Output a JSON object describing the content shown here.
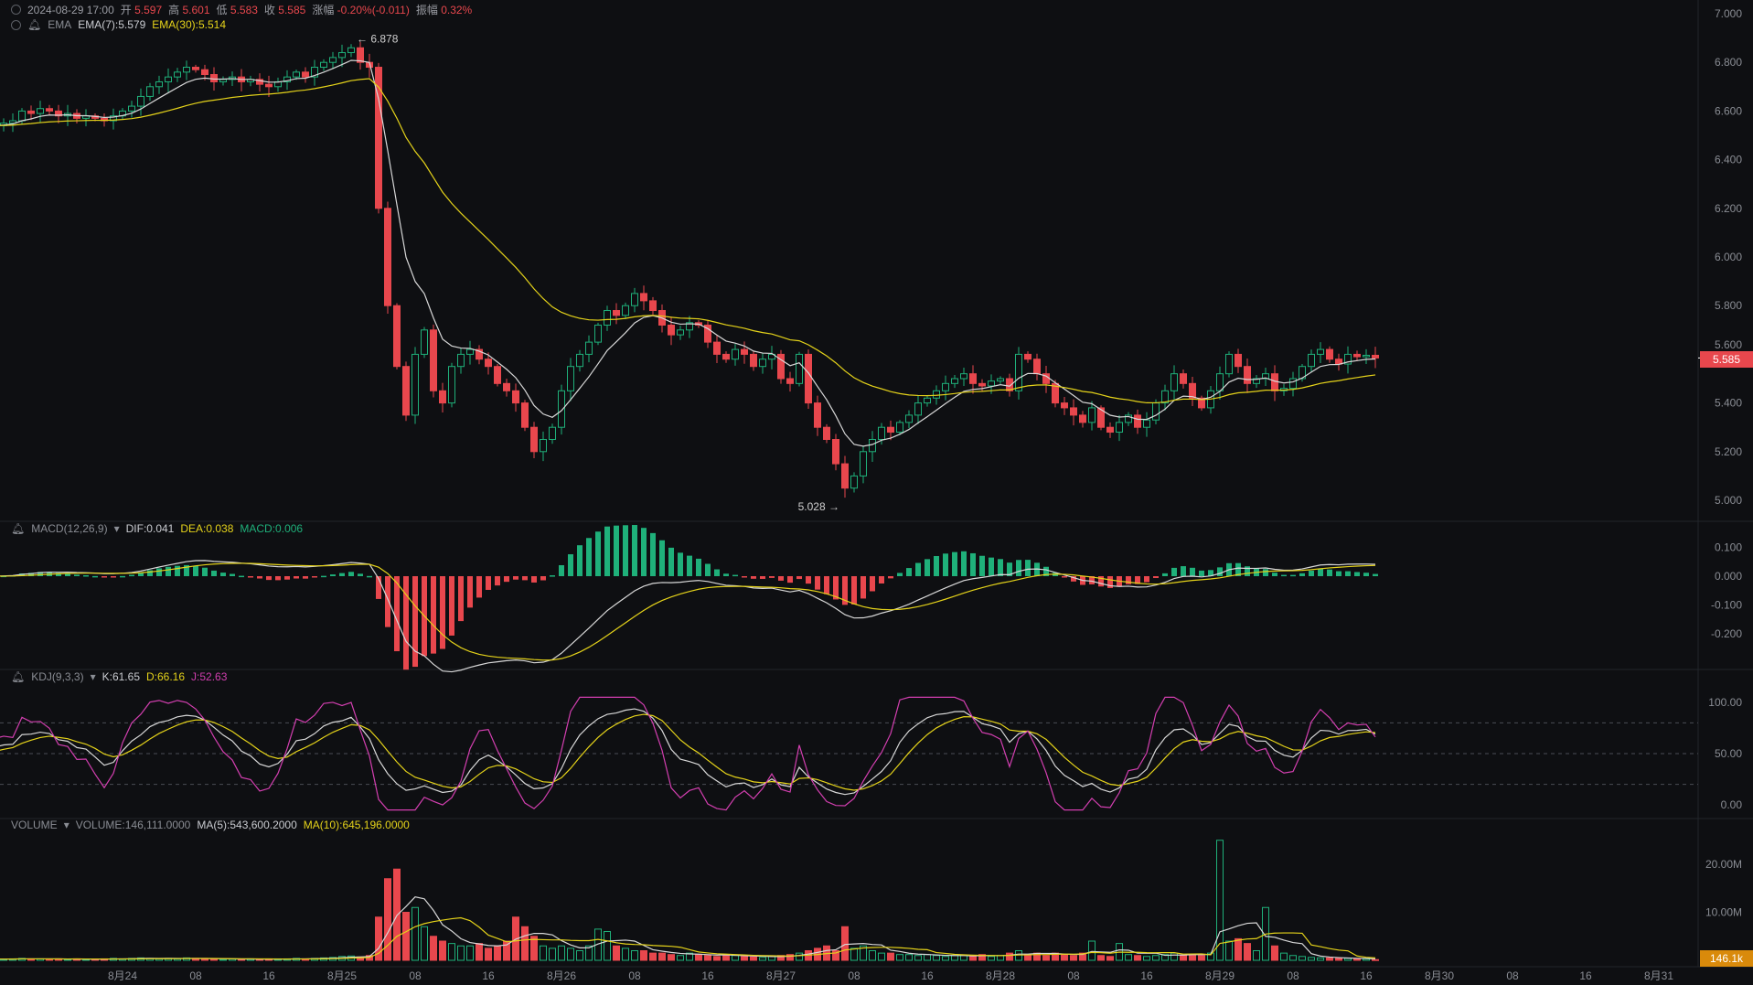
{
  "header": {
    "datetime": "2024-08-29 17:00",
    "open_label": "开",
    "open": "5.597",
    "high_label": "高",
    "high": "5.601",
    "low_label": "低",
    "low": "5.583",
    "close_label": "收",
    "close": "5.585",
    "change_label": "涨幅",
    "change": "-0.20%(-0.011)",
    "amp_label": "振幅",
    "amp": "0.32%"
  },
  "ema_legend": {
    "name": "EMA",
    "ema7": "EMA(7):5.579",
    "ema30": "EMA(30):5.514"
  },
  "macd_legend": {
    "name": "MACD(12,26,9)",
    "dif": "DIF:0.041",
    "dea": "DEA:0.038",
    "macd": "MACD:0.006"
  },
  "kdj_legend": {
    "name": "KDJ(9,3,3)",
    "k": "K:61.65",
    "d": "D:66.16",
    "j": "J:52.63"
  },
  "volume_legend": {
    "name": "VOLUME",
    "vol": "VOLUME:146,111.0000",
    "ma5": "MA(5):543,600.2000",
    "ma10": "MA(10):645,196.0000"
  },
  "colors": {
    "up": "#1fb07a",
    "down": "#e8474d",
    "ema7": "#d8d8d8",
    "ema30": "#e5d31a",
    "kdj_j": "#d33fb0",
    "volume_badge": "#d98a0b",
    "bg": "#0e0f12"
  },
  "chart_data": {
    "type": "candlestick",
    "interval": "1h",
    "price_axis": {
      "ticks": [
        "7.000",
        "6.800",
        "6.600",
        "6.400",
        "6.200",
        "6.000",
        "5.800",
        "5.600",
        "5.400",
        "5.200",
        "5.000"
      ],
      "range": [
        5.0,
        7.0
      ]
    },
    "macd_axis": {
      "ticks": [
        "0.100",
        "0.000",
        "-0.100",
        "-0.200"
      ]
    },
    "kdj_axis": {
      "ticks": [
        "100.00",
        "50.00",
        "0.00"
      ],
      "guides": [
        80,
        50,
        20
      ]
    },
    "volume_axis": {
      "ticks": [
        "20.00M",
        "10.00M"
      ]
    },
    "time_axis": [
      "8月24",
      "08",
      "16",
      "8月25",
      "08",
      "16",
      "8月26",
      "08",
      "16",
      "8月27",
      "08",
      "16",
      "8月28",
      "08",
      "16",
      "8月29",
      "08",
      "16",
      "8月30",
      "08",
      "16",
      "8月31"
    ],
    "annotations": {
      "max": "6.878",
      "min": "5.028",
      "last_price": "5.585",
      "last_volume": "146.1k"
    },
    "first_open": 6.53,
    "closes": [
      6.54,
      6.55,
      6.56,
      6.6,
      6.59,
      6.61,
      6.6,
      6.58,
      6.59,
      6.57,
      6.58,
      6.57,
      6.56,
      6.58,
      6.6,
      6.62,
      6.66,
      6.7,
      6.72,
      6.74,
      6.76,
      6.78,
      6.77,
      6.75,
      6.72,
      6.73,
      6.74,
      6.72,
      6.73,
      6.71,
      6.7,
      6.72,
      6.74,
      6.76,
      6.74,
      6.78,
      6.8,
      6.82,
      6.84,
      6.86,
      6.8,
      6.78,
      6.2,
      5.8,
      5.55,
      5.35,
      5.6,
      5.7,
      5.45,
      5.4,
      5.55,
      5.6,
      5.62,
      5.58,
      5.55,
      5.48,
      5.45,
      5.4,
      5.3,
      5.2,
      5.25,
      5.3,
      5.45,
      5.55,
      5.6,
      5.65,
      5.72,
      5.78,
      5.76,
      5.8,
      5.85,
      5.82,
      5.78,
      5.72,
      5.68,
      5.7,
      5.73,
      5.72,
      5.65,
      5.6,
      5.58,
      5.62,
      5.6,
      5.55,
      5.58,
      5.6,
      5.5,
      5.48,
      5.6,
      5.4,
      5.3,
      5.25,
      5.15,
      5.05,
      5.1,
      5.2,
      5.25,
      5.3,
      5.28,
      5.32,
      5.35,
      5.4,
      5.42,
      5.45,
      5.48,
      5.5,
      5.52,
      5.48,
      5.47,
      5.49,
      5.5,
      5.45,
      5.6,
      5.58,
      5.52,
      5.48,
      5.4,
      5.38,
      5.35,
      5.32,
      5.38,
      5.3,
      5.28,
      5.32,
      5.35,
      5.3,
      5.33,
      5.4,
      5.45,
      5.52,
      5.48,
      5.42,
      5.38,
      5.45,
      5.52,
      5.6,
      5.55,
      5.48,
      5.5,
      5.52,
      5.45,
      5.46,
      5.5,
      5.55,
      5.6,
      5.62,
      5.58,
      5.56,
      5.6,
      5.59,
      5.596,
      5.585
    ],
    "volumes_millions": [
      0.3,
      0.2,
      0.3,
      0.4,
      0.3,
      0.3,
      0.2,
      0.3,
      0.2,
      0.3,
      0.2,
      0.2,
      0.3,
      0.4,
      0.3,
      0.4,
      0.5,
      0.4,
      0.3,
      0.4,
      0.3,
      0.5,
      0.4,
      0.3,
      0.3,
      0.2,
      0.3,
      0.2,
      0.3,
      0.2,
      0.2,
      0.3,
      0.3,
      0.4,
      0.3,
      0.4,
      0.5,
      0.6,
      0.8,
      0.9,
      0.7,
      1.0,
      9.0,
      17.0,
      19.0,
      10.0,
      11.0,
      7.0,
      5.0,
      4.0,
      3.5,
      3.0,
      3.0,
      3.5,
      2.5,
      3.0,
      4.0,
      9.0,
      7.0,
      5.0,
      3.0,
      2.5,
      3.0,
      2.5,
      2.0,
      3.0,
      6.5,
      6.0,
      3.0,
      2.5,
      2.0,
      2.0,
      1.5,
      1.5,
      1.2,
      1.0,
      1.5,
      1.2,
      1.0,
      0.8,
      1.2,
      1.0,
      0.8,
      0.7,
      0.6,
      0.8,
      1.0,
      1.2,
      1.5,
      2.0,
      2.5,
      3.0,
      2.0,
      7.0,
      2.5,
      3.0,
      2.0,
      1.5,
      1.5,
      1.2,
      1.2,
      1.0,
      1.2,
      1.0,
      0.8,
      1.0,
      1.0,
      0.8,
      1.2,
      0.8,
      1.0,
      1.5,
      2.0,
      1.2,
      1.5,
      1.0,
      1.5,
      1.2,
      1.0,
      1.5,
      4.0,
      1.0,
      0.8,
      3.5,
      1.2,
      1.0,
      0.8,
      1.0,
      1.2,
      1.5,
      1.0,
      1.2,
      1.0,
      1.5,
      25.0,
      4.0,
      4.5,
      3.5,
      2.0,
      11.0,
      3.0,
      1.5,
      1.0,
      0.8,
      0.6,
      0.5,
      0.5,
      0.4,
      0.4,
      0.3,
      0.3,
      0.15
    ]
  }
}
